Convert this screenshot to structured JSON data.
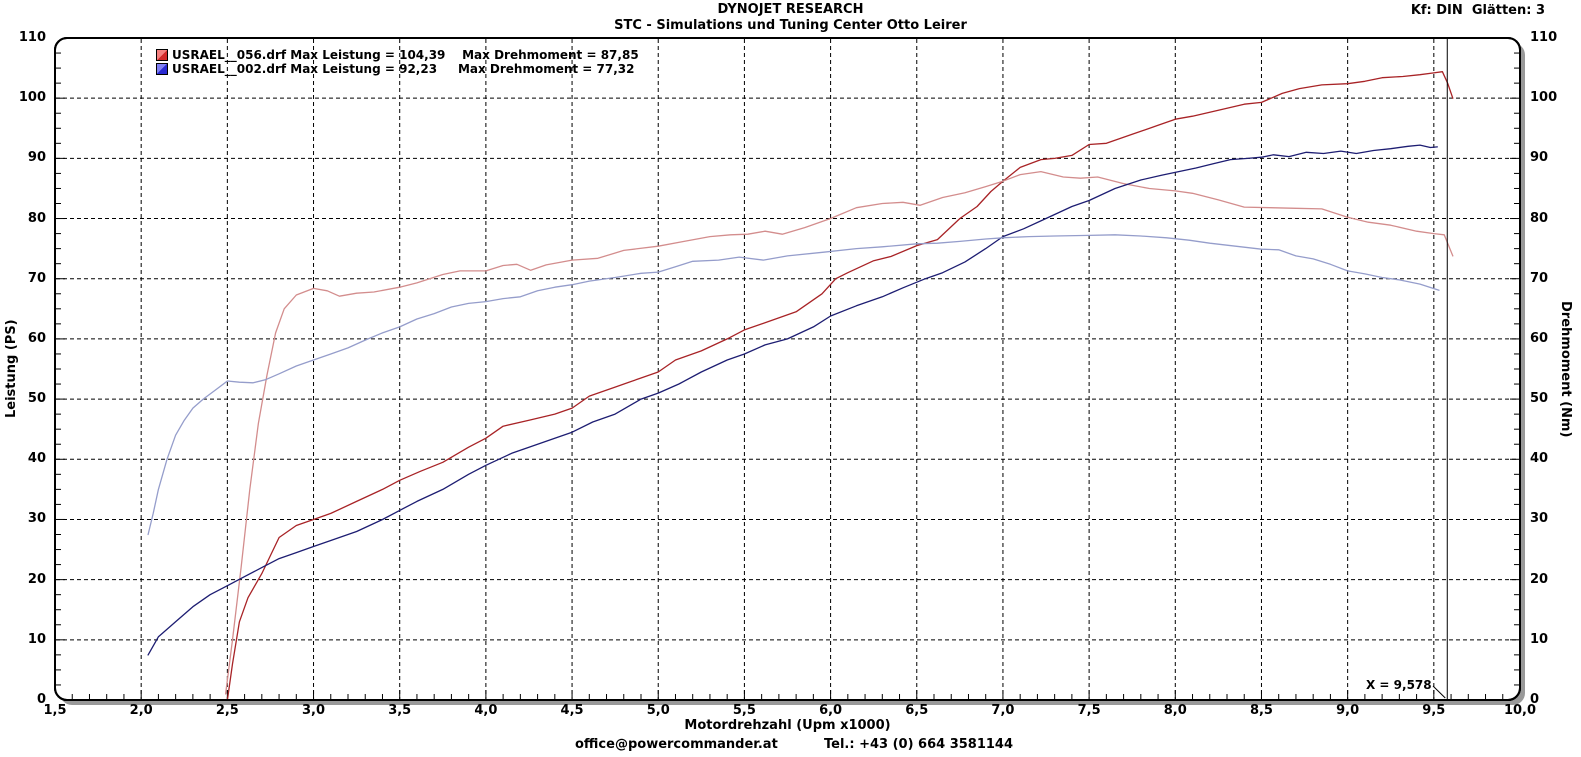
{
  "header": {
    "title": "DYNOJET RESEARCH",
    "subtitle": "STC - Simulations und Tuning Center Otto Leirer",
    "smoothing_label": "Kf: DIN  Glätten: 3"
  },
  "footer": {
    "email": "office@powercommander.at",
    "phone": "Tel.: +43 (0) 664 3581144"
  },
  "legend": {
    "entries": [
      {
        "label": "USRAEL__056.drf Max Leistung = 104,39    Max Drehmoment = 87,85",
        "swatch_light": "#f4807f",
        "swatch_dark": "#d22a2a"
      },
      {
        "label": "USRAEL__002.drf Max Leistung = 92,23     Max Drehmoment = 77,32",
        "swatch_light": "#8080f4",
        "swatch_dark": "#2a2ad2"
      }
    ]
  },
  "cursor": {
    "x": 9.578,
    "label": "X = 9,578"
  },
  "chart_data": {
    "type": "line",
    "title": "DYNOJET RESEARCH",
    "subtitle": "STC - Simulations und Tuning Center Otto Leirer",
    "xlabel": "Motordrehzahl (Upm x1000)",
    "ylabel_left": "Leistung (PS)",
    "ylabel_right": "Drehmoment (Nm)",
    "xlim": [
      1.5,
      10.0
    ],
    "ylim": [
      0,
      110
    ],
    "grid": {
      "x_major": 0.5,
      "x_minor": 0.1,
      "y_major": 10,
      "y_minor": 2.5,
      "style": "dashed"
    },
    "x_ticks": {
      "values": [
        1.5,
        2.0,
        2.5,
        3.0,
        3.5,
        4.0,
        4.5,
        5.0,
        5.5,
        6.0,
        6.5,
        7.0,
        7.5,
        8.0,
        8.5,
        9.0,
        9.5,
        10.0
      ],
      "labels": [
        "1,5",
        "2,0",
        "2,5",
        "3,0",
        "3,5",
        "4,0",
        "4,5",
        "5,0",
        "5,5",
        "6,0",
        "6,5",
        "7,0",
        "7,5",
        "8,0",
        "8,5",
        "9,0",
        "9,5",
        "10,0"
      ]
    },
    "y_ticks": {
      "values": [
        0,
        10,
        20,
        30,
        40,
        50,
        60,
        70,
        80,
        90,
        100,
        110
      ],
      "labels": [
        "0",
        "10",
        "20",
        "30",
        "40",
        "50",
        "60",
        "70",
        "80",
        "90",
        "100",
        "110"
      ]
    },
    "series": [
      {
        "name": "USRAEL__056.drf Leistung (PS)",
        "max_label": "Max Leistung = 104,39",
        "color": "#a82326",
        "points": [
          [
            2.5,
            0
          ],
          [
            2.53,
            6
          ],
          [
            2.57,
            13
          ],
          [
            2.62,
            17
          ],
          [
            2.7,
            21
          ],
          [
            2.75,
            24
          ],
          [
            2.8,
            27
          ],
          [
            2.9,
            29
          ],
          [
            3.0,
            30
          ],
          [
            3.1,
            31
          ],
          [
            3.25,
            33
          ],
          [
            3.4,
            35
          ],
          [
            3.5,
            36.5
          ],
          [
            3.62,
            38
          ],
          [
            3.75,
            39.5
          ],
          [
            3.9,
            42
          ],
          [
            4.0,
            43.5
          ],
          [
            4.1,
            45.5
          ],
          [
            4.25,
            46.5
          ],
          [
            4.4,
            47.5
          ],
          [
            4.5,
            48.5
          ],
          [
            4.6,
            50.5
          ],
          [
            4.75,
            52
          ],
          [
            4.9,
            53.5
          ],
          [
            5.0,
            54.5
          ],
          [
            5.1,
            56.5
          ],
          [
            5.25,
            58
          ],
          [
            5.4,
            60
          ],
          [
            5.5,
            61.5
          ],
          [
            5.65,
            63
          ],
          [
            5.8,
            64.5
          ],
          [
            5.95,
            67.5
          ],
          [
            6.03,
            70
          ],
          [
            6.1,
            71
          ],
          [
            6.25,
            73
          ],
          [
            6.35,
            73.7
          ],
          [
            6.5,
            75.5
          ],
          [
            6.62,
            76.5
          ],
          [
            6.75,
            80
          ],
          [
            6.85,
            82
          ],
          [
            6.93,
            84.5
          ],
          [
            7.0,
            86.2
          ],
          [
            7.1,
            88.5
          ],
          [
            7.22,
            89.8
          ],
          [
            7.3,
            90
          ],
          [
            7.4,
            90.5
          ],
          [
            7.5,
            92.3
          ],
          [
            7.6,
            92.5
          ],
          [
            7.75,
            94
          ],
          [
            7.9,
            95.5
          ],
          [
            8.0,
            96.5
          ],
          [
            8.1,
            97
          ],
          [
            8.25,
            98
          ],
          [
            8.4,
            99
          ],
          [
            8.5,
            99.3
          ],
          [
            8.62,
            100.8
          ],
          [
            8.72,
            101.6
          ],
          [
            8.85,
            102.2
          ],
          [
            9.0,
            102.4
          ],
          [
            9.1,
            102.8
          ],
          [
            9.2,
            103.4
          ],
          [
            9.32,
            103.6
          ],
          [
            9.42,
            103.9
          ],
          [
            9.5,
            104.2
          ],
          [
            9.55,
            104.4
          ],
          [
            9.58,
            102.5
          ],
          [
            9.61,
            100
          ]
        ]
      },
      {
        "name": "USRAEL__056.drf Drehmoment (Nm)",
        "max_label": "Max Drehmoment = 87,85",
        "color": "#d38d8d",
        "points": [
          [
            2.49,
            1
          ],
          [
            2.53,
            10
          ],
          [
            2.58,
            22
          ],
          [
            2.63,
            35
          ],
          [
            2.68,
            46
          ],
          [
            2.73,
            54
          ],
          [
            2.78,
            61
          ],
          [
            2.83,
            65
          ],
          [
            2.9,
            67.3
          ],
          [
            3.0,
            68.4
          ],
          [
            3.08,
            68
          ],
          [
            3.15,
            67.1
          ],
          [
            3.25,
            67.6
          ],
          [
            3.35,
            67.8
          ],
          [
            3.5,
            68.6
          ],
          [
            3.6,
            69.3
          ],
          [
            3.75,
            70.7
          ],
          [
            3.85,
            71.3
          ],
          [
            4.0,
            71.3
          ],
          [
            4.1,
            72.2
          ],
          [
            4.18,
            72.4
          ],
          [
            4.26,
            71.4
          ],
          [
            4.35,
            72.3
          ],
          [
            4.5,
            73.1
          ],
          [
            4.65,
            73.4
          ],
          [
            4.8,
            74.7
          ],
          [
            5.0,
            75.4
          ],
          [
            5.15,
            76.2
          ],
          [
            5.3,
            77
          ],
          [
            5.42,
            77.3
          ],
          [
            5.52,
            77.4
          ],
          [
            5.62,
            77.9
          ],
          [
            5.72,
            77.4
          ],
          [
            5.85,
            78.5
          ],
          [
            6.0,
            80
          ],
          [
            6.15,
            81.8
          ],
          [
            6.3,
            82.5
          ],
          [
            6.42,
            82.7
          ],
          [
            6.52,
            82.2
          ],
          [
            6.65,
            83.5
          ],
          [
            6.78,
            84.3
          ],
          [
            6.9,
            85.3
          ],
          [
            7.0,
            86.2
          ],
          [
            7.1,
            87.3
          ],
          [
            7.22,
            87.8
          ],
          [
            7.35,
            86.9
          ],
          [
            7.45,
            86.7
          ],
          [
            7.55,
            86.9
          ],
          [
            7.7,
            85.8
          ],
          [
            7.85,
            85
          ],
          [
            8.0,
            84.6
          ],
          [
            8.1,
            84.2
          ],
          [
            8.25,
            83.1
          ],
          [
            8.4,
            81.9
          ],
          [
            8.55,
            81.8
          ],
          [
            8.7,
            81.7
          ],
          [
            8.85,
            81.6
          ],
          [
            9.0,
            80.2
          ],
          [
            9.12,
            79.4
          ],
          [
            9.25,
            78.9
          ],
          [
            9.4,
            77.9
          ],
          [
            9.5,
            77.5
          ],
          [
            9.56,
            77.3
          ],
          [
            9.61,
            73.8
          ]
        ]
      },
      {
        "name": "USRAEL__002.drf Leistung (PS)",
        "max_label": "Max Leistung = 92,23",
        "color": "#1d1d72",
        "points": [
          [
            2.04,
            7.5
          ],
          [
            2.1,
            10.5
          ],
          [
            2.2,
            13
          ],
          [
            2.3,
            15.5
          ],
          [
            2.4,
            17.5
          ],
          [
            2.5,
            19
          ],
          [
            2.6,
            20.5
          ],
          [
            2.7,
            22
          ],
          [
            2.8,
            23.5
          ],
          [
            2.9,
            24.5
          ],
          [
            3.0,
            25.5
          ],
          [
            3.1,
            26.5
          ],
          [
            3.25,
            28
          ],
          [
            3.4,
            30
          ],
          [
            3.5,
            31.5
          ],
          [
            3.6,
            33
          ],
          [
            3.75,
            35
          ],
          [
            3.9,
            37.5
          ],
          [
            4.0,
            39
          ],
          [
            4.15,
            41
          ],
          [
            4.25,
            42
          ],
          [
            4.4,
            43.5
          ],
          [
            4.5,
            44.5
          ],
          [
            4.62,
            46.2
          ],
          [
            4.75,
            47.5
          ],
          [
            4.9,
            50
          ],
          [
            5.0,
            51
          ],
          [
            5.12,
            52.5
          ],
          [
            5.25,
            54.5
          ],
          [
            5.4,
            56.5
          ],
          [
            5.5,
            57.5
          ],
          [
            5.62,
            59
          ],
          [
            5.75,
            60
          ],
          [
            5.9,
            62
          ],
          [
            6.0,
            63.8
          ],
          [
            6.15,
            65.5
          ],
          [
            6.3,
            67
          ],
          [
            6.42,
            68.5
          ],
          [
            6.55,
            70
          ],
          [
            6.65,
            71
          ],
          [
            6.78,
            72.8
          ],
          [
            6.9,
            75
          ],
          [
            7.0,
            77
          ],
          [
            7.12,
            78.3
          ],
          [
            7.25,
            80
          ],
          [
            7.4,
            82
          ],
          [
            7.5,
            83
          ],
          [
            7.65,
            85
          ],
          [
            7.8,
            86.4
          ],
          [
            7.92,
            87.2
          ],
          [
            8.02,
            87.8
          ],
          [
            8.12,
            88.4
          ],
          [
            8.22,
            89.1
          ],
          [
            8.32,
            89.8
          ],
          [
            8.42,
            90
          ],
          [
            8.5,
            90.2
          ],
          [
            8.57,
            90.6
          ],
          [
            8.66,
            90.3
          ],
          [
            8.76,
            91
          ],
          [
            8.86,
            90.8
          ],
          [
            8.96,
            91.2
          ],
          [
            9.05,
            90.8
          ],
          [
            9.15,
            91.3
          ],
          [
            9.25,
            91.6
          ],
          [
            9.35,
            92
          ],
          [
            9.42,
            92.2
          ],
          [
            9.48,
            91.8
          ],
          [
            9.52,
            91.9
          ]
        ]
      },
      {
        "name": "USRAEL__002.drf Drehmoment (Nm)",
        "max_label": "Max Drehmoment = 77,32",
        "color": "#959dcb",
        "points": [
          [
            2.04,
            27.5
          ],
          [
            2.07,
            31
          ],
          [
            2.1,
            35
          ],
          [
            2.15,
            40
          ],
          [
            2.2,
            44
          ],
          [
            2.25,
            46.5
          ],
          [
            2.3,
            48.5
          ],
          [
            2.36,
            50
          ],
          [
            2.43,
            51.5
          ],
          [
            2.5,
            53
          ],
          [
            2.57,
            52.8
          ],
          [
            2.65,
            52.7
          ],
          [
            2.72,
            53.2
          ],
          [
            2.8,
            54.2
          ],
          [
            2.9,
            55.5
          ],
          [
            3.0,
            56.5
          ],
          [
            3.1,
            57.5
          ],
          [
            3.2,
            58.5
          ],
          [
            3.3,
            59.8
          ],
          [
            3.4,
            61
          ],
          [
            3.5,
            62
          ],
          [
            3.6,
            63.3
          ],
          [
            3.7,
            64.2
          ],
          [
            3.8,
            65.3
          ],
          [
            3.9,
            65.9
          ],
          [
            4.0,
            66.2
          ],
          [
            4.1,
            66.7
          ],
          [
            4.2,
            67
          ],
          [
            4.3,
            68
          ],
          [
            4.4,
            68.6
          ],
          [
            4.5,
            69
          ],
          [
            4.6,
            69.6
          ],
          [
            4.75,
            70.2
          ],
          [
            4.9,
            70.9
          ],
          [
            5.0,
            71.1
          ],
          [
            5.1,
            72
          ],
          [
            5.2,
            72.9
          ],
          [
            5.35,
            73.1
          ],
          [
            5.47,
            73.6
          ],
          [
            5.61,
            73.1
          ],
          [
            5.75,
            73.8
          ],
          [
            5.96,
            74.4
          ],
          [
            6.15,
            75
          ],
          [
            6.3,
            75.3
          ],
          [
            6.5,
            75.8
          ],
          [
            6.62,
            75.9
          ],
          [
            6.75,
            76.2
          ],
          [
            6.9,
            76.6
          ],
          [
            7.0,
            76.8
          ],
          [
            7.15,
            77
          ],
          [
            7.3,
            77.1
          ],
          [
            7.5,
            77.2
          ],
          [
            7.65,
            77.3
          ],
          [
            7.8,
            77.1
          ],
          [
            7.95,
            76.8
          ],
          [
            8.08,
            76.4
          ],
          [
            8.2,
            75.9
          ],
          [
            8.35,
            75.4
          ],
          [
            8.5,
            74.9
          ],
          [
            8.6,
            74.8
          ],
          [
            8.7,
            73.8
          ],
          [
            8.8,
            73.3
          ],
          [
            8.9,
            72.4
          ],
          [
            9.0,
            71.3
          ],
          [
            9.1,
            70.8
          ],
          [
            9.2,
            70.2
          ],
          [
            9.3,
            69.8
          ],
          [
            9.42,
            69.1
          ],
          [
            9.53,
            68.1
          ]
        ]
      }
    ]
  }
}
